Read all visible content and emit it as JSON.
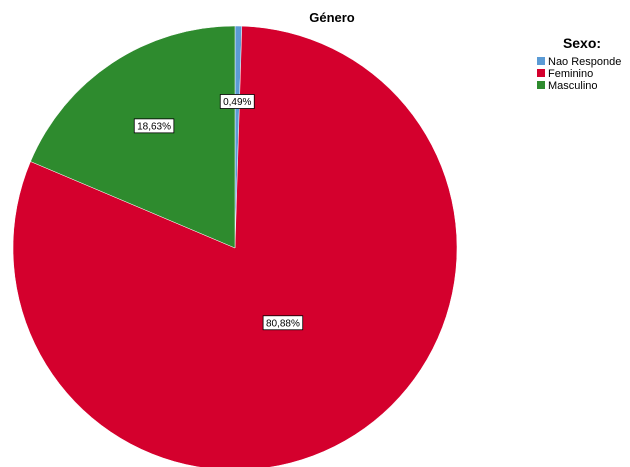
{
  "chart_data": {
    "type": "pie",
    "title": "Género",
    "legend_title": "Sexo:",
    "legend_position": "top-right",
    "start_angle_deg": 0,
    "direction": "clockwise",
    "slices": [
      {
        "name": "Nao Responde",
        "value": 0.49,
        "label": "0,49%",
        "color": "#5b9bd5"
      },
      {
        "name": "Feminino",
        "value": 80.88,
        "label": "80,88%",
        "color": "#d4002d"
      },
      {
        "name": "Masculino",
        "value": 18.63,
        "label": "18,63%",
        "color": "#2e8b2e"
      }
    ]
  }
}
